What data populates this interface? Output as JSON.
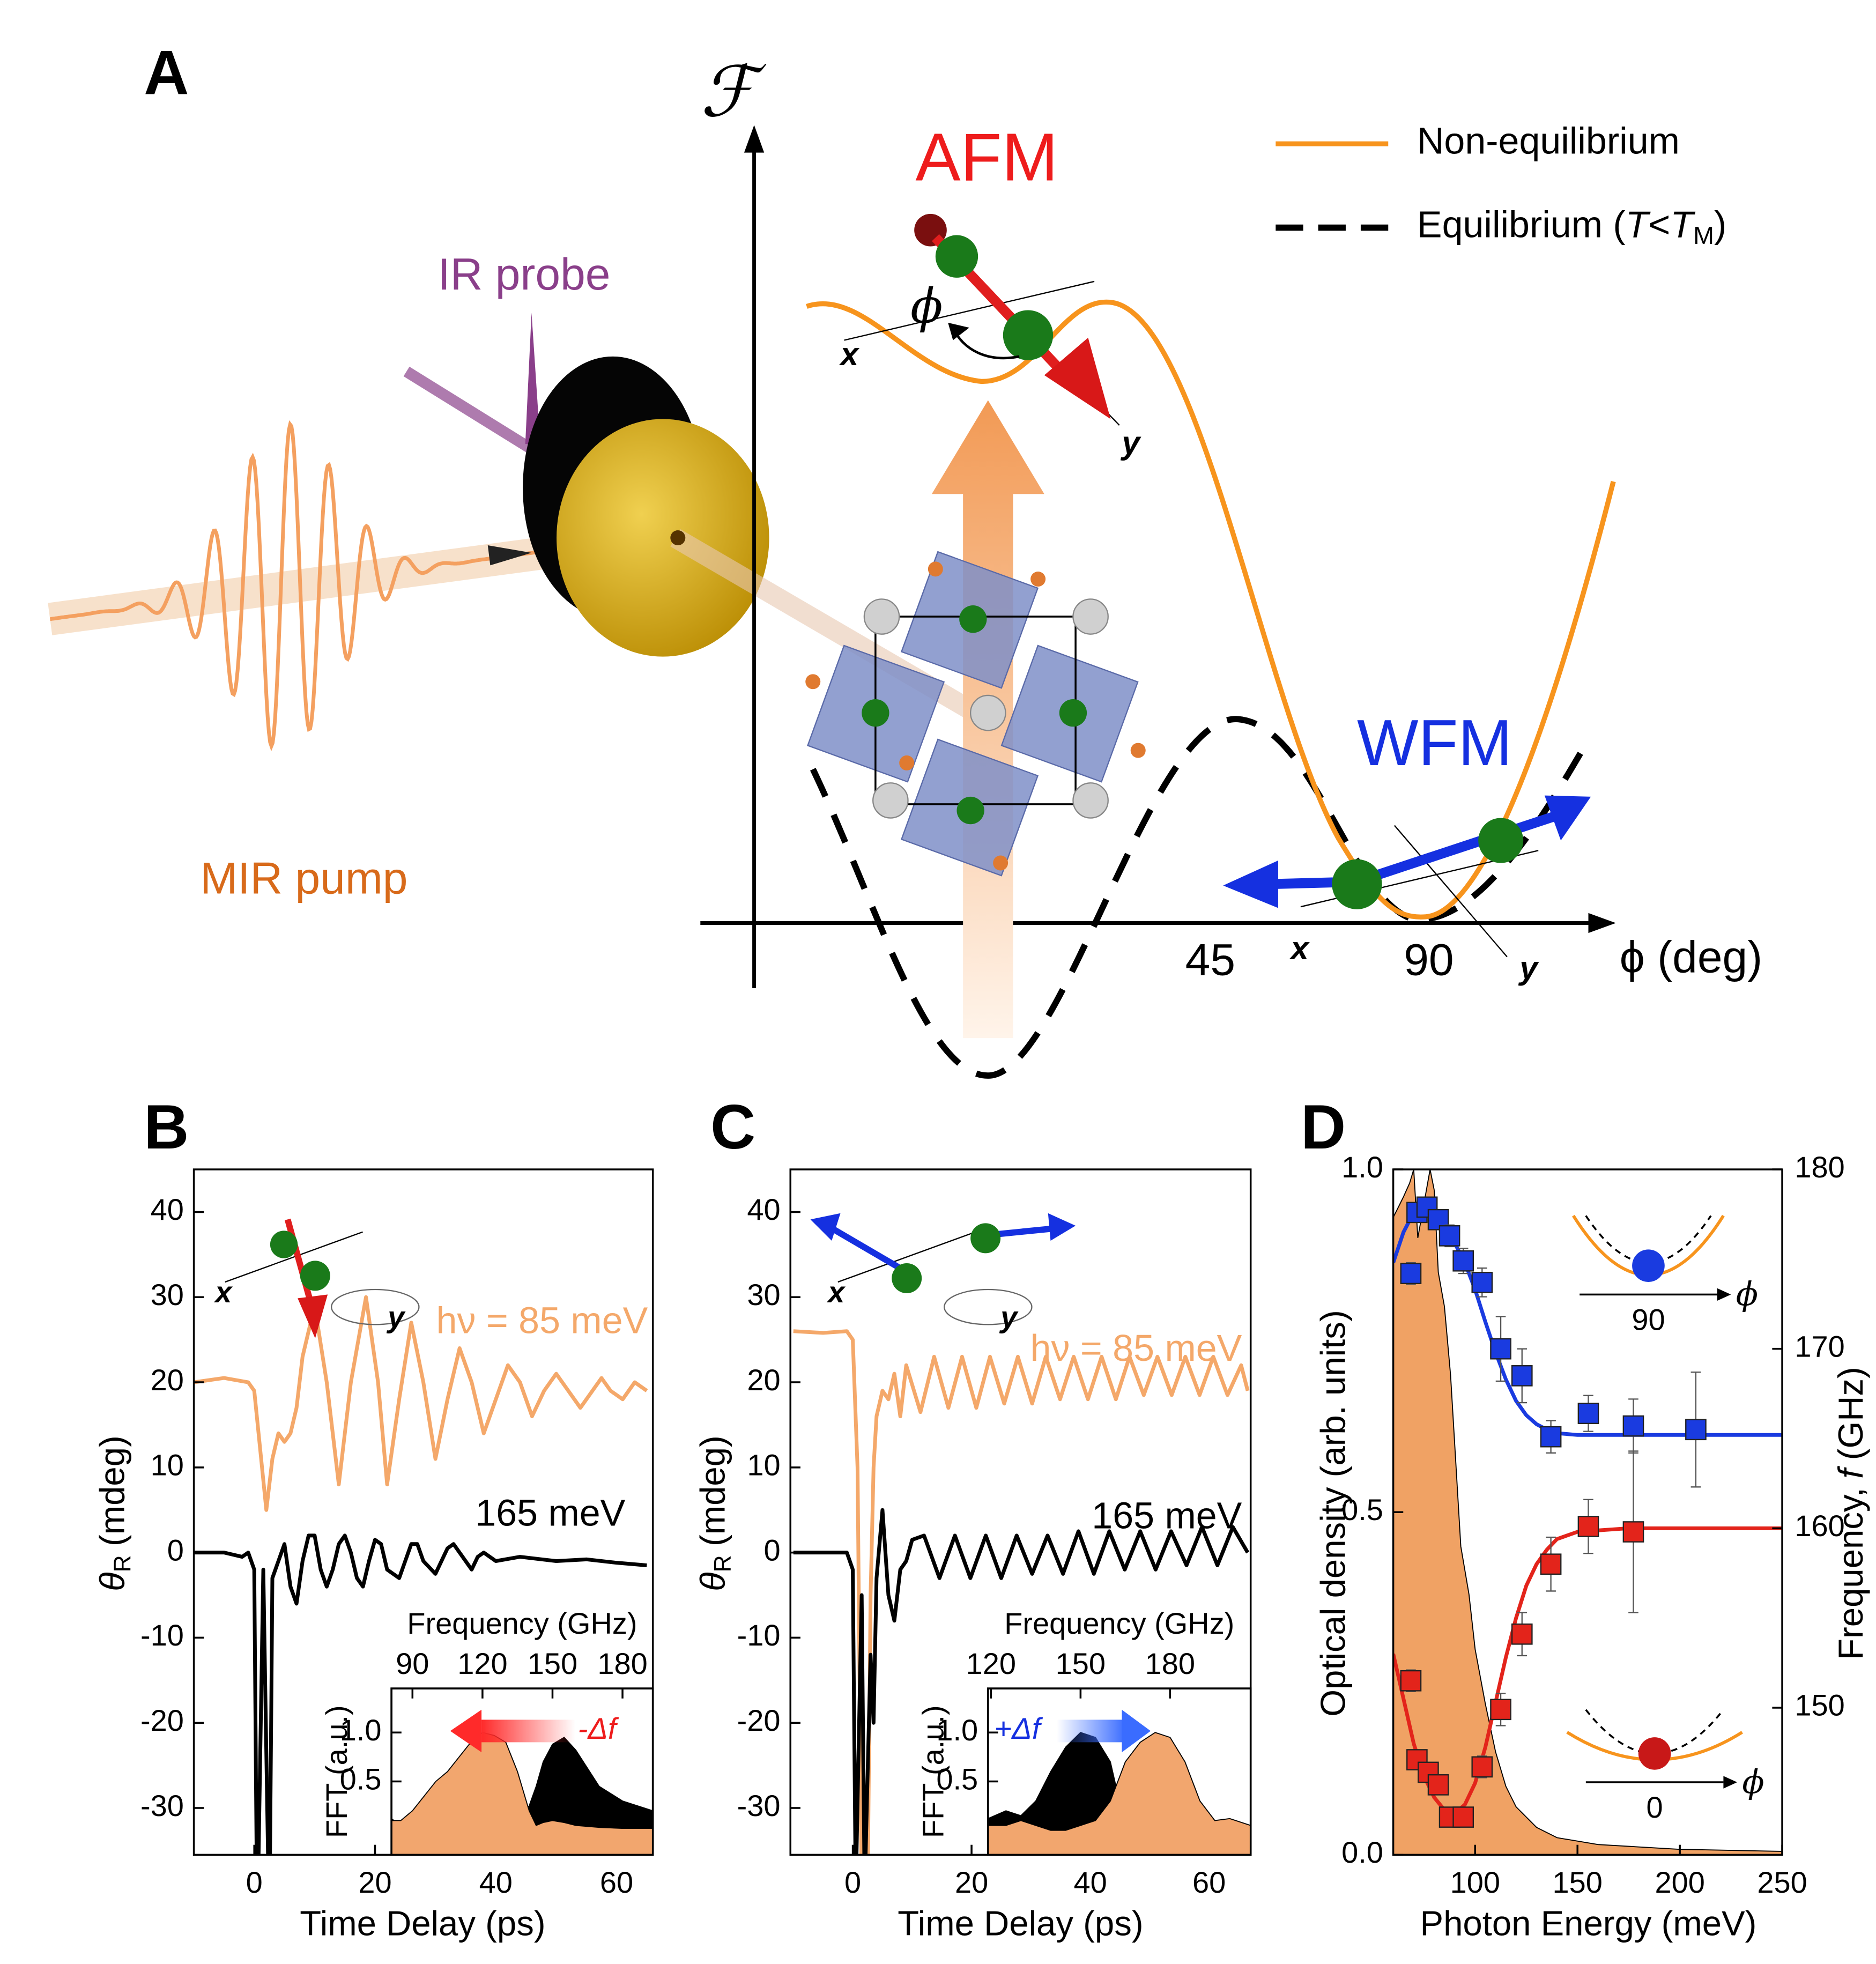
{
  "chart_data": [
    {
      "type": "schematic",
      "label": "A",
      "xlabel": "ϕ (deg)",
      "xlim": [
        -60,
        128
      ],
      "xticks": [
        45,
        90
      ],
      "legend": {
        "non_equilibrium": "Non-equilibrium",
        "equilibrium": [
          "Equilibrium (",
          "T",
          "<",
          "T",
          "M",
          ")"
        ]
      },
      "annotations": {
        "f_axis": "ℱ",
        "afm": "AFM",
        "wfm": "WFM",
        "ir_probe": "IR probe",
        "mir_pump": "MIR pump",
        "afm_angle": "ϕ",
        "afm_x": "x",
        "afm_y": "y",
        "wfm_x": "x",
        "wfm_y": "y"
      }
    },
    {
      "type": "line",
      "label": "B",
      "xlabel": "Time Delay (ps)",
      "ylabel": {
        "symbol": "θ",
        "sub": "R",
        "unit": "(mdeg)"
      },
      "xlim": [
        -10,
        66
      ],
      "ylim": [
        -35.5,
        45
      ],
      "xticks": [
        0,
        20,
        40,
        60
      ],
      "yticks": [
        -30,
        -20,
        -10,
        0,
        10,
        20,
        30,
        40
      ],
      "series": [
        {
          "name": "hν = 85 meV",
          "color": "#f4a86a",
          "x": [
            -10,
            -5,
            -1,
            0,
            1,
            2,
            3,
            4,
            5,
            6,
            7,
            8,
            10,
            12,
            14,
            16,
            18.5,
            20.5,
            22,
            24,
            26,
            28,
            30,
            32,
            34,
            36,
            38,
            40,
            42,
            44,
            46,
            48,
            50,
            52,
            54,
            56,
            57.5,
            59,
            61,
            63,
            65
          ],
          "values": [
            20,
            20.5,
            20,
            19,
            12,
            5,
            11,
            14,
            13,
            14,
            17,
            23,
            29,
            20,
            8,
            20,
            30,
            20,
            8,
            18,
            27,
            20,
            11,
            18,
            24,
            20,
            14,
            18,
            22,
            20,
            16,
            19,
            21,
            19,
            17,
            19,
            20.5,
            19,
            18,
            20,
            19
          ]
        },
        {
          "name": "165 meV",
          "color": "#000000",
          "x": [
            -10,
            -5,
            -2,
            -1,
            0,
            0.5,
            1.5,
            2.5,
            3,
            4,
            5,
            6,
            7,
            8,
            9,
            10,
            11,
            12,
            13,
            14,
            15,
            16,
            17,
            18,
            19,
            20,
            21,
            22,
            24,
            25,
            26,
            27,
            28,
            30,
            31,
            32,
            33,
            34,
            36,
            37,
            38,
            40,
            44,
            50,
            55,
            60,
            65
          ],
          "values": [
            0,
            0,
            -0.5,
            0,
            -2,
            -45,
            -2,
            -45,
            -3,
            -1,
            1,
            -4,
            -6,
            -1,
            2,
            2,
            -2,
            -4,
            -2,
            1,
            2,
            0,
            -3,
            -4,
            -1,
            1.5,
            1,
            -2,
            -3,
            -1,
            1,
            1,
            -1,
            -2.5,
            -1,
            0.5,
            1,
            0,
            -2,
            -0.5,
            0,
            -1,
            -0.5,
            -1,
            -0.8,
            -1.2,
            -1.5
          ]
        }
      ],
      "annotations": {
        "spin_x": "x",
        "spin_y": "y",
        "shift": "-Δf"
      },
      "inset": {
        "type": "area",
        "xlabel": "Frequency (GHz)",
        "ylabel": "FFT (a.u.)",
        "xlim": [
          81,
          193
        ],
        "ylim": [
          -0.25,
          1.45
        ],
        "xticks": [
          90,
          120,
          150,
          180
        ],
        "yticks": [
          0.5,
          {
            "value": 1,
            "label": "1.0"
          }
        ],
        "series": [
          {
            "color": "#000000",
            "x": [
              81,
              85,
              90,
              95,
              100,
              105,
              110,
              115,
              120,
              125,
              130,
              135,
              140,
              143,
              146,
              150,
              155,
              160,
              170,
              180,
              193
            ],
            "values": [
              0.12,
              0.05,
              0.05,
              0.05,
              0.05,
              0.05,
              0.05,
              0.05,
              0.05,
              0.05,
              0.1,
              0.15,
              0.25,
              0.45,
              0.7,
              0.88,
              0.95,
              0.82,
              0.45,
              0.3,
              0.2
            ]
          },
          {
            "color": "#f2a66e",
            "x": [
              81,
              85,
              90,
              95,
              100,
              105,
              110,
              115,
              120,
              125,
              130,
              135,
              140,
              143,
              146,
              150,
              155,
              160,
              170,
              180,
              193
            ],
            "values": [
              0.1,
              0.1,
              0.2,
              0.35,
              0.5,
              0.6,
              0.75,
              0.9,
              1.0,
              0.97,
              0.9,
              0.6,
              0.2,
              0.05,
              0.08,
              0.1,
              0.08,
              0.05,
              0.03,
              0.02,
              0.02
            ]
          }
        ]
      }
    },
    {
      "type": "line",
      "label": "C",
      "xlabel": "Time Delay (ps)",
      "ylabel": {
        "symbol": "θ",
        "sub": "R",
        "unit": "(mdeg)"
      },
      "xlim": [
        -10.5,
        67
      ],
      "ylim": [
        -35.5,
        45
      ],
      "xticks": [
        0,
        20,
        40,
        60
      ],
      "yticks": [
        -30,
        -20,
        -10,
        0,
        10,
        20,
        30,
        40
      ],
      "series": [
        {
          "name": "hν = 85 meV",
          "color": "#f4a86a",
          "x": [
            -10,
            -5,
            -1,
            0,
            0.8,
            1.5,
            2.5,
            3,
            3.5,
            4,
            5,
            6,
            7,
            8,
            9,
            11.4,
            13.7,
            16.1,
            18.4,
            20.8,
            23.1,
            25.5,
            27.8,
            30.2,
            32.5,
            34.9,
            37.2,
            39.6,
            41.9,
            44.3,
            46.6,
            49,
            51.3,
            53.7,
            56,
            58.4,
            60.7,
            63.1,
            65.4,
            66.5
          ],
          "values": [
            26,
            25.8,
            26,
            25,
            10,
            -40,
            -40,
            -5,
            10,
            16,
            19,
            18,
            21,
            16,
            22,
            16.5,
            23,
            17,
            23,
            17,
            23,
            17.5,
            23,
            17.5,
            23,
            18,
            23,
            18,
            23,
            18,
            23,
            18.5,
            23,
            18.5,
            23,
            18.5,
            23,
            18.5,
            22,
            19
          ]
        },
        {
          "name": "165 meV",
          "color": "#000000",
          "x": [
            -10,
            -5,
            -1,
            0,
            0.5,
            1.5,
            2,
            3,
            3.5,
            4,
            5,
            6,
            7,
            8,
            9,
            10,
            12,
            14.6,
            17.2,
            19.8,
            22.4,
            25,
            27.6,
            30.2,
            32.8,
            35.4,
            38,
            40.6,
            43.2,
            45.8,
            48.4,
            51,
            53.6,
            56.2,
            58.8,
            61.4,
            64,
            66.5
          ],
          "values": [
            0,
            0,
            0,
            -2,
            -40,
            -5,
            -40,
            -12,
            -20,
            -3,
            5,
            -5,
            -8,
            -2,
            -1,
            1.5,
            2,
            -3,
            2,
            -3,
            2,
            -3,
            2,
            -2.5,
            2,
            -2.5,
            2.5,
            -2.5,
            2.5,
            -2,
            2.5,
            -2,
            2.5,
            -1.5,
            3,
            -1.5,
            3,
            0
          ]
        }
      ],
      "annotations": {
        "spin_x": "x",
        "spin_y": "y",
        "shift": "+Δf"
      },
      "inset": {
        "type": "area",
        "xlabel": "Frequency (GHz)",
        "ylabel": "FFT (a.u.)",
        "xlim": [
          119,
          207
        ],
        "ylim": [
          -0.25,
          1.45
        ],
        "xticks": [
          120,
          150,
          180
        ],
        "yticks": [
          0.5,
          {
            "value": 1,
            "label": "1.0"
          }
        ],
        "series": [
          {
            "color": "#000000",
            "x": [
              119,
              125,
              130,
              135,
              140,
              145,
              150,
              155,
              160,
              163,
              165,
              170,
              180,
              190,
              207
            ],
            "values": [
              0.12,
              0.2,
              0.15,
              0.3,
              0.6,
              0.85,
              1.0,
              0.95,
              0.7,
              0.3,
              0.1,
              0.05,
              0.05,
              0.05,
              0.05
            ]
          },
          {
            "color": "#f2a66e",
            "x": [
              119,
              125,
              130,
              135,
              140,
              145,
              150,
              155,
              160,
              165,
              170,
              175,
              180,
              185,
              190,
              195,
              200,
              207
            ],
            "values": [
              0.05,
              0.05,
              0.1,
              0.05,
              0,
              0,
              0.05,
              0.1,
              0.3,
              0.7,
              0.9,
              1.0,
              0.95,
              0.7,
              0.3,
              0.1,
              0.12,
              0.05
            ]
          }
        ]
      }
    },
    {
      "type": "scatter",
      "label": "D",
      "xlabel": "Photon Energy (meV)",
      "ylabel": "Optical density (arb. units)",
      "y2label": [
        "Frequency,",
        "f",
        "(GHz)"
      ],
      "xlim": [
        60,
        250
      ],
      "ylim": [
        0,
        1
      ],
      "y2lim": [
        141.8,
        180
      ],
      "xticks": [
        100,
        150,
        200,
        250
      ],
      "yticks": [
        {
          "value": 0,
          "label": "0.0"
        },
        0.5,
        {
          "value": 1,
          "label": "1.0"
        }
      ],
      "y2ticks": [
        150,
        160,
        170,
        180
      ],
      "series": [
        {
          "kind": "area",
          "axis": "y",
          "color": "#f0a264",
          "x": [
            60,
            65,
            68,
            70,
            72,
            75,
            78,
            80,
            82,
            85,
            88,
            90,
            93,
            97,
            100,
            105,
            110,
            115,
            120,
            130,
            140,
            160,
            200,
            250
          ],
          "values": [
            0.93,
            0.96,
            0.98,
            1.0,
            0.9,
            0.95,
            1.0,
            0.97,
            0.85,
            0.8,
            0.7,
            0.6,
            0.45,
            0.38,
            0.3,
            0.22,
            0.15,
            0.1,
            0.07,
            0.04,
            0.025,
            0.015,
            0.008,
            0.005
          ]
        },
        {
          "kind": "line",
          "axis": "y2",
          "color": "#1a3be0",
          "x": [
            60,
            65,
            70,
            75,
            80,
            85,
            90,
            95,
            100,
            105,
            110,
            115,
            120,
            125,
            130,
            135,
            140,
            150,
            175,
            200,
            250
          ],
          "values": [
            174.8,
            176.5,
            177.6,
            177.9,
            177.5,
            176.8,
            175.9,
            174.8,
            173.3,
            171.5,
            169.8,
            168.3,
            167.1,
            166.3,
            165.8,
            165.5,
            165.3,
            165.2,
            165.2,
            165.2,
            165.2
          ]
        },
        {
          "kind": "line",
          "axis": "y2",
          "color": "#e3241b",
          "x": [
            60,
            65,
            70,
            75,
            80,
            85,
            90,
            95,
            100,
            105,
            110,
            115,
            120,
            125,
            130,
            135,
            140,
            150,
            175,
            200,
            250
          ],
          "values": [
            153,
            150.5,
            148,
            146.2,
            145,
            144.3,
            144.1,
            144.6,
            145.8,
            147.8,
            150.3,
            152.8,
            155,
            156.8,
            158,
            158.8,
            159.4,
            159.8,
            160,
            160,
            160
          ]
        },
        {
          "kind": "scatter",
          "axis": "y2",
          "color": "#1a3be0",
          "x": [
            68.6,
            71.6,
            76.5,
            82,
            87.5,
            94.2,
            103.4,
            112.5,
            122.9,
            137,
            155.3,
            177.3,
            207.8
          ],
          "values": [
            174.2,
            177.6,
            177.9,
            177.2,
            176.3,
            174.9,
            173.7,
            170,
            168.5,
            165.1,
            166.4,
            165.7,
            165.5
          ],
          "errors": [
            0.6,
            0.4,
            0.4,
            0.5,
            0.6,
            0.7,
            0.8,
            1.8,
            1.5,
            0.9,
            1,
            1.5,
            3.2
          ]
        },
        {
          "kind": "scatter",
          "axis": "y2",
          "color": "#e3241b",
          "x": [
            68.6,
            71.6,
            77.1,
            82,
            87.5,
            94.2,
            103.4,
            112.5,
            122.9,
            137,
            155.3,
            177.3
          ],
          "values": [
            151.5,
            147.1,
            146.4,
            145.7,
            143.9,
            143.9,
            146.7,
            149.9,
            154.1,
            158,
            160.1,
            159.8
          ],
          "errors": [
            0.6,
            0.5,
            0.5,
            0.5,
            0.5,
            0.5,
            0.6,
            0.9,
            1.2,
            1.5,
            1.5,
            4.5
          ]
        }
      ],
      "annotations": {
        "top_tick": "90",
        "top_axis": "ϕ",
        "bottom_tick": "0",
        "bottom_axis": "ϕ"
      }
    }
  ]
}
